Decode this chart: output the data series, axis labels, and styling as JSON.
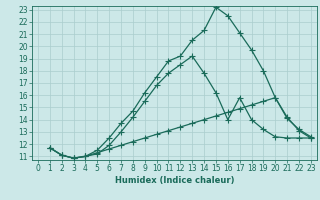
{
  "xlabel": "Humidex (Indice chaleur)",
  "bg_color": "#cce8e8",
  "line_color": "#1a6b5a",
  "grid_color": "#aacece",
  "xlim": [
    -0.5,
    23.5
  ],
  "ylim": [
    10.7,
    23.3
  ],
  "xticks": [
    0,
    1,
    2,
    3,
    4,
    5,
    6,
    7,
    8,
    9,
    10,
    11,
    12,
    13,
    14,
    15,
    16,
    17,
    18,
    19,
    20,
    21,
    22,
    23
  ],
  "yticks": [
    11,
    12,
    13,
    14,
    15,
    16,
    17,
    18,
    19,
    20,
    21,
    22,
    23
  ],
  "curves": [
    {
      "x": [
        1,
        2,
        3,
        4,
        5,
        6,
        7,
        8,
        9,
        10,
        11,
        12,
        13,
        14,
        15,
        16,
        17,
        18,
        19,
        20,
        21,
        22,
        23
      ],
      "y": [
        11.7,
        11.1,
        10.85,
        11.0,
        11.5,
        12.5,
        13.7,
        14.7,
        16.2,
        17.5,
        18.8,
        19.2,
        20.5,
        21.3,
        23.2,
        22.5,
        21.1,
        19.7,
        18.0,
        15.8,
        14.1,
        13.2,
        12.6
      ]
    },
    {
      "x": [
        1,
        2,
        3,
        4,
        5,
        6,
        7,
        8,
        9,
        10,
        11,
        12,
        13,
        14,
        15,
        16,
        17,
        18,
        19,
        20,
        21,
        22,
        23
      ],
      "y": [
        11.7,
        11.1,
        10.85,
        11.0,
        11.2,
        11.9,
        13.0,
        14.2,
        15.5,
        16.8,
        17.8,
        18.5,
        19.2,
        17.8,
        16.2,
        14.0,
        15.8,
        14.0,
        13.2,
        12.6,
        12.5,
        12.5,
        12.5
      ]
    },
    {
      "x": [
        1,
        2,
        3,
        4,
        5,
        6,
        7,
        8,
        9,
        10,
        11,
        12,
        13,
        14,
        15,
        16,
        17,
        18,
        19,
        20,
        21,
        22,
        23
      ],
      "y": [
        11.7,
        11.1,
        10.85,
        11.0,
        11.3,
        11.6,
        11.9,
        12.2,
        12.5,
        12.8,
        13.1,
        13.4,
        13.7,
        14.0,
        14.3,
        14.6,
        14.9,
        15.2,
        15.5,
        15.8,
        14.2,
        13.1,
        12.5
      ]
    }
  ],
  "tick_fontsize": 5.5,
  "label_fontsize": 6.0,
  "linewidth": 0.9,
  "markersize": 2.2
}
